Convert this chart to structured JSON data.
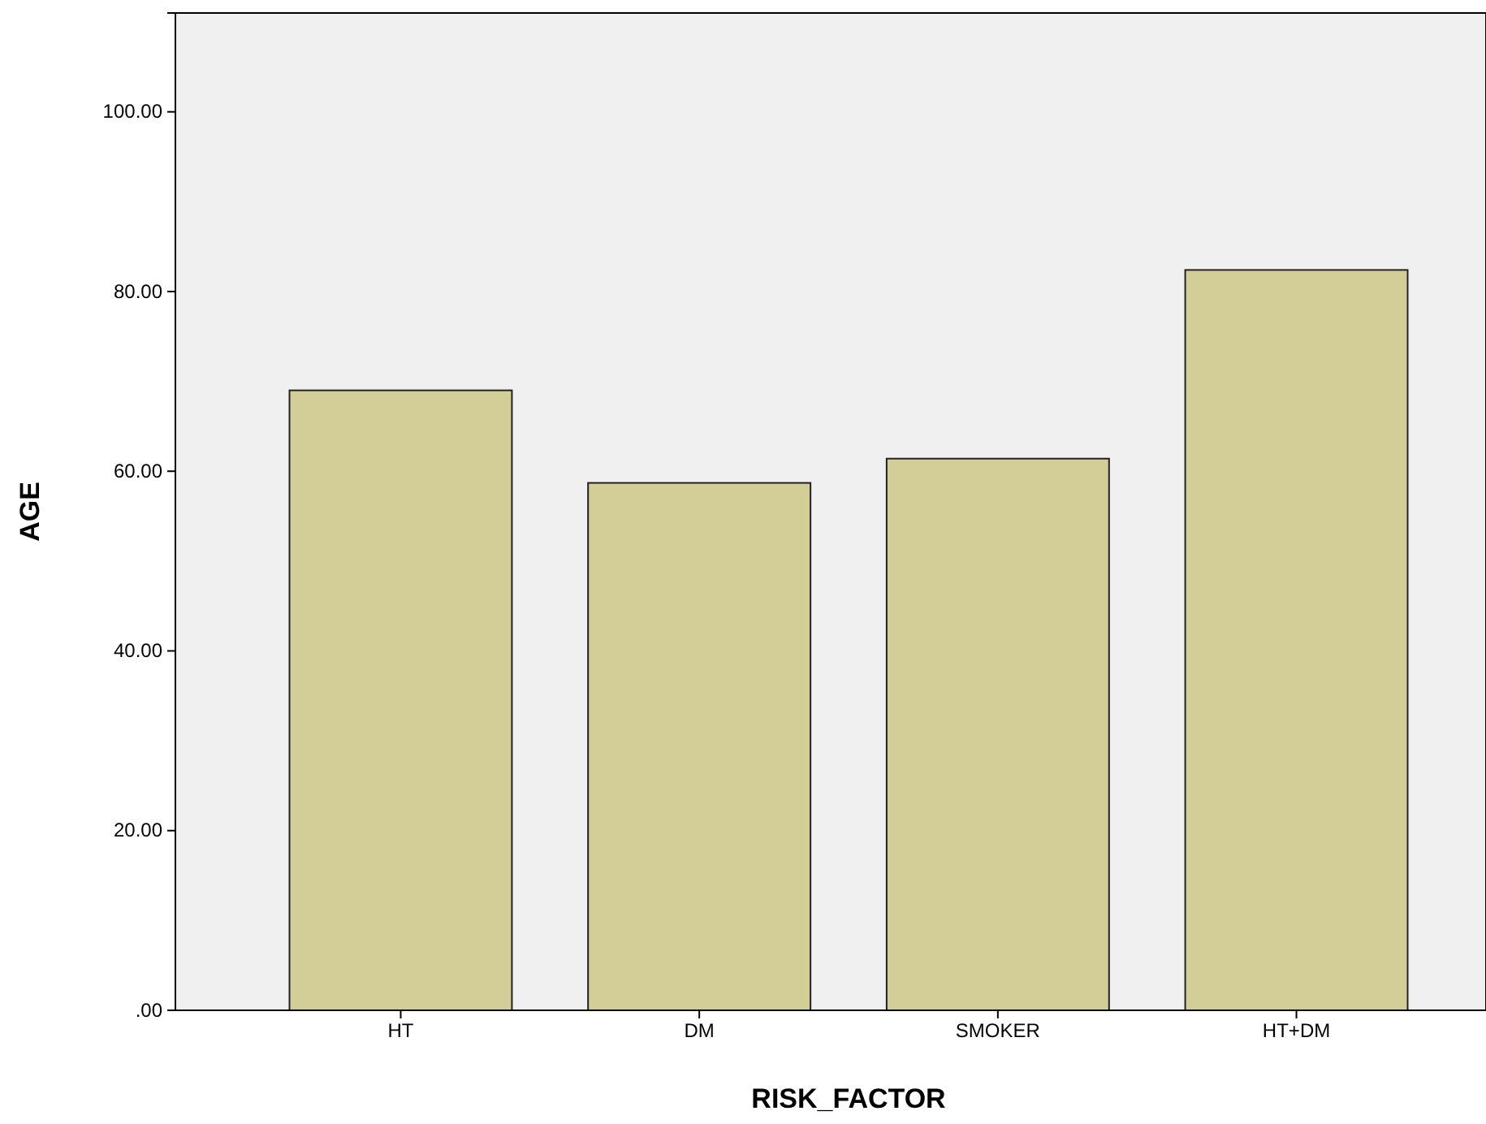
{
  "chart_data": {
    "type": "bar",
    "xlabel": "RISK_FACTOR",
    "ylabel": "AGE",
    "categories": [
      "HT",
      "DM",
      "SMOKER",
      "HT+DM"
    ],
    "values": [
      69.0,
      58.7,
      61.4,
      82.4
    ],
    "color": "#d3ce98",
    "ylim": [
      0,
      111
    ],
    "yticks": [
      {
        "value": 0,
        "label": ".00"
      },
      {
        "value": 20,
        "label": "20.00"
      },
      {
        "value": 40,
        "label": "40.00"
      },
      {
        "value": 60,
        "label": "60.00"
      },
      {
        "value": 80,
        "label": "80.00"
      },
      {
        "value": 100,
        "label": "100.00"
      }
    ]
  }
}
